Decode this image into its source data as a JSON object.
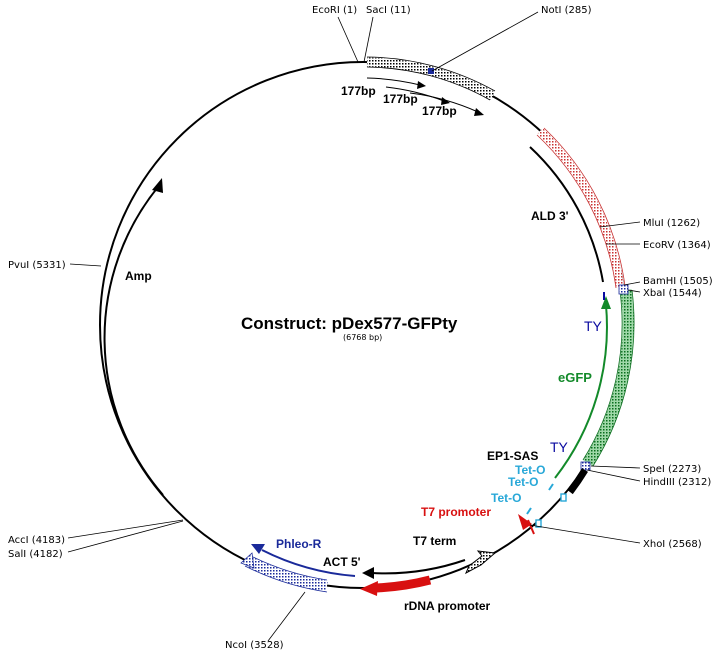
{
  "construct": {
    "title": "Construct:  pDex577-GFPty",
    "size": "(6768 bp)"
  },
  "colors": {
    "backbone": "#000000",
    "ald3": "#d03030",
    "egfp": "#138a2a",
    "ty": "#0a0aa0",
    "teto": "#28a8d8",
    "t7": "#d81010",
    "phleo": "#1a2a9a",
    "rdna": "#d81010"
  },
  "sites": [
    {
      "id": "ecori-1",
      "label": "EcoRI (1)"
    },
    {
      "id": "saci-11",
      "label": "SacI (11)"
    },
    {
      "id": "noti-285",
      "label": "NotI (285)"
    },
    {
      "id": "mlui-1262",
      "label": "MluI (1262)"
    },
    {
      "id": "ecorv-1364",
      "label": "EcoRV (1364)"
    },
    {
      "id": "bamhi-1505",
      "label": "BamHI (1505)"
    },
    {
      "id": "xbai-1544",
      "label": "XbaI (1544)"
    },
    {
      "id": "spei-2273",
      "label": "SpeI (2273)"
    },
    {
      "id": "hindiii-2312",
      "label": "HindIII (2312)"
    },
    {
      "id": "xhoi-2568",
      "label": "XhoI (2568)"
    },
    {
      "id": "ncoi-3528",
      "label": "NcoI (3528)"
    },
    {
      "id": "sali-4182",
      "label": "SalI (4182)"
    },
    {
      "id": "acci-4183",
      "label": "AccI (4183)"
    },
    {
      "id": "pvui-5331",
      "label": "PvuI (5331)"
    }
  ],
  "features": {
    "repeat1": "177bp",
    "repeat2": "177bp",
    "repeat3": "177bp",
    "ald3": "ALD 3'",
    "ty1": "TY",
    "egfp": "eGFP",
    "ty2": "TY",
    "ep1sas": "EP1-SAS",
    "teto1": "Tet-O",
    "teto2": "Tet-O",
    "teto3": "Tet-O",
    "t7promoter": "T7 promoter",
    "t7term": "T7 term",
    "act5": "ACT 5'",
    "phleo": "Phleo-R",
    "rdna": "rDNA promoter",
    "amp": "Amp"
  }
}
